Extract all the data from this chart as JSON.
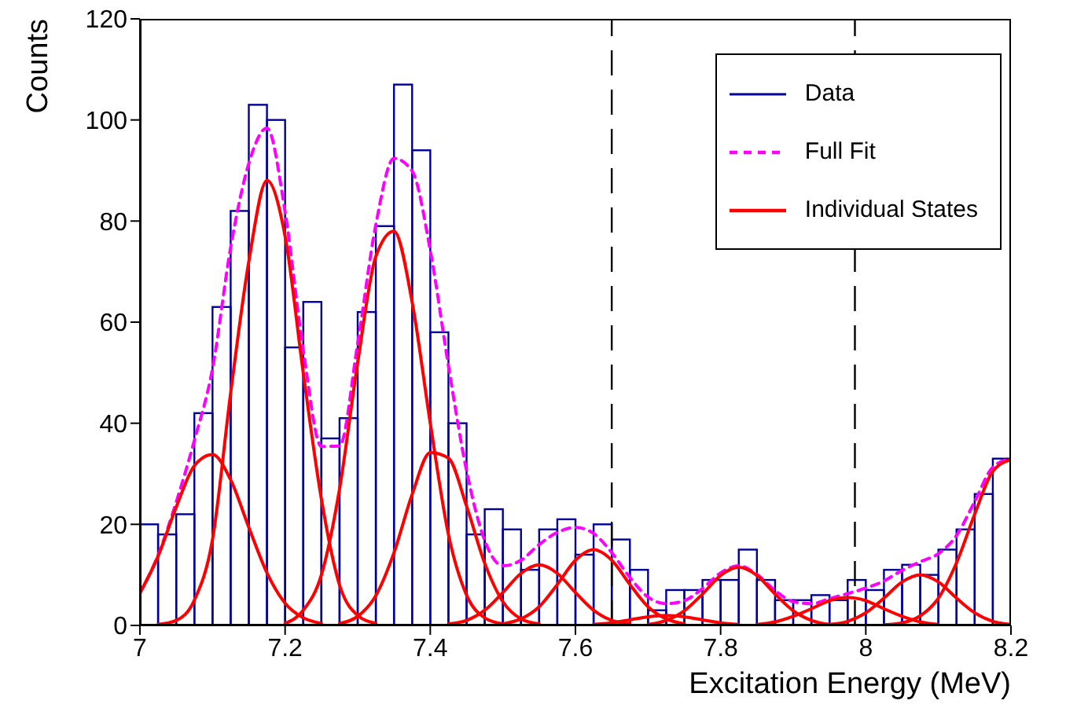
{
  "chart_data": {
    "type": "histogram",
    "xlabel": "Excitation Energy (MeV)",
    "ylabel": "Counts",
    "xlim": [
      7,
      8.2
    ],
    "xticks": [
      7,
      7.2,
      7.4,
      7.6,
      7.8,
      8,
      8.2
    ],
    "ylim": [
      0,
      120
    ],
    "yticks": [
      0,
      20,
      40,
      60,
      80,
      100,
      120
    ],
    "legend": "top right",
    "ref_lines": [
      {
        "axis": "x",
        "value": 7.65,
        "color": "#000000",
        "line_style": "dashed"
      },
      {
        "axis": "x",
        "value": 7.985,
        "color": "#000000",
        "line_style": "dashed"
      }
    ],
    "series": [
      {
        "name": "Data",
        "color": "#000099",
        "bins": [
          7,
          7.025,
          7.05,
          7.075,
          7.1,
          7.125,
          7.15,
          7.175,
          7.2,
          7.225,
          7.25,
          7.275,
          7.3,
          7.325,
          7.35,
          7.375,
          7.4,
          7.425,
          7.45,
          7.475,
          7.5,
          7.525,
          7.55,
          7.575,
          7.6,
          7.625,
          7.65,
          7.675,
          7.7,
          7.725,
          7.75,
          7.775,
          7.8,
          7.825,
          7.85,
          7.875,
          7.9,
          7.925,
          7.95,
          7.975,
          8,
          8.025,
          8.05,
          8.075,
          8.1,
          8.125,
          8.15,
          8.175,
          8.2
        ],
        "values": [
          20,
          18,
          22,
          42,
          63,
          82,
          103,
          100,
          55,
          64,
          37,
          41,
          62,
          79,
          107,
          94,
          58,
          40,
          18,
          23,
          19,
          11,
          19,
          21,
          14,
          20,
          17,
          11,
          3,
          7,
          7,
          9,
          9,
          15,
          9,
          5,
          5,
          6,
          5,
          9,
          7,
          11,
          12,
          10,
          15,
          19,
          26,
          33
        ]
      },
      {
        "type": "line",
        "name": "Full Fit",
        "color": "#ff00ff",
        "line_style": "dashed",
        "x": [
          7,
          7.025,
          7.05,
          7.075,
          7.1,
          7.125,
          7.15,
          7.175,
          7.2,
          7.225,
          7.25,
          7.275,
          7.3,
          7.325,
          7.35,
          7.375,
          7.4,
          7.425,
          7.45,
          7.475,
          7.5,
          7.525,
          7.55,
          7.575,
          7.6,
          7.625,
          7.65,
          7.675,
          7.7,
          7.725,
          7.75,
          7.775,
          7.8,
          7.825,
          7.85,
          7.875,
          7.9,
          7.925,
          7.95,
          7.975,
          8,
          8.025,
          8.05,
          8.075,
          8.1,
          8.125,
          8.15,
          8.175,
          8.2
        ],
        "values": [
          6.4,
          13.9,
          24.4,
          36.6,
          50.8,
          74.8,
          91.4,
          98.4,
          81.8,
          54.5,
          35.4,
          35.5,
          55.8,
          79.3,
          92.4,
          89.9,
          74.2,
          51.4,
          30.6,
          16.8,
          11.8,
          12.9,
          16,
          18.4,
          19.4,
          18.2,
          14.4,
          9.5,
          5.6,
          4.3,
          4.9,
          7.3,
          10.4,
          11.8,
          10.1,
          6.9,
          4.7,
          4.3,
          5.3,
          6.3,
          7.4,
          8.8,
          10.9,
          12.6,
          14.2,
          17.8,
          24.5,
          31.3,
          33
        ]
      },
      {
        "type": "line",
        "name": "Individual States",
        "color": "#ff0000",
        "x": [
          7,
          7.025,
          7.05,
          7.075,
          7.1,
          7.125,
          7.15,
          7.175,
          7.2,
          7.225,
          7.25
        ],
        "values": [
          6.4,
          13.7,
          23.4,
          31.6,
          33.8,
          28.8,
          19.4,
          10.4,
          4.4,
          1.5,
          0.4
        ]
      },
      {
        "type": "line",
        "color": "#ff0000",
        "x": [
          7.025,
          7.05,
          7.075,
          7.1,
          7.125,
          7.15,
          7.175,
          7.2,
          7.225,
          7.25,
          7.275,
          7.3,
          7.325
        ],
        "values": [
          0.2,
          1,
          5,
          17,
          46,
          72,
          88,
          77,
          50,
          25,
          8,
          2,
          0.4
        ]
      },
      {
        "type": "line",
        "color": "#ff0000",
        "x": [
          7.2,
          7.225,
          7.25,
          7.275,
          7.3,
          7.325,
          7.35,
          7.375,
          7.4,
          7.425,
          7.45,
          7.475,
          7.5
        ],
        "values": [
          0.4,
          3,
          10,
          27,
          52,
          73,
          78,
          64,
          40,
          18,
          6,
          1.5,
          0.3
        ]
      },
      {
        "type": "line",
        "color": "#ff0000",
        "x": [
          7.275,
          7.3,
          7.325,
          7.35,
          7.375,
          7.4,
          7.425,
          7.45,
          7.475,
          7.5,
          7.525,
          7.55
        ],
        "values": [
          0.4,
          1.8,
          5.9,
          14.4,
          25.9,
          34.2,
          33.1,
          23.6,
          12.3,
          4.7,
          1.3,
          0.3
        ]
      },
      {
        "type": "line",
        "color": "#ff0000",
        "x": [
          7.425,
          7.45,
          7.475,
          7.5,
          7.525,
          7.55,
          7.575,
          7.6,
          7.625,
          7.65,
          7.675
        ],
        "values": [
          0.3,
          1,
          3,
          6.5,
          10.3,
          12,
          10.3,
          6.5,
          3,
          1,
          0.3
        ]
      },
      {
        "type": "line",
        "color": "#ff0000",
        "x": [
          7.5,
          7.525,
          7.55,
          7.575,
          7.6,
          7.625,
          7.65,
          7.675,
          7.7,
          7.725,
          7.75
        ],
        "values": [
          0.3,
          1.3,
          3.7,
          8.1,
          12.9,
          15,
          12.9,
          8.1,
          3.7,
          1.3,
          0.3
        ]
      },
      {
        "type": "line",
        "color": "#ff0000",
        "x": [
          7.625,
          7.65,
          7.675,
          7.7,
          7.725,
          7.75,
          7.775,
          7.8,
          7.825
        ],
        "values": [
          0.2,
          0.5,
          1.1,
          1.7,
          2,
          1.7,
          1.1,
          0.5,
          0.2
        ]
      },
      {
        "type": "line",
        "color": "#ff0000",
        "x": [
          7.7,
          7.725,
          7.75,
          7.775,
          7.8,
          7.825,
          7.85,
          7.875,
          7.9,
          7.925,
          7.95
        ],
        "values": [
          0.2,
          1,
          2.9,
          6.2,
          9.9,
          11.5,
          9.9,
          6.2,
          2.9,
          1,
          0.2
        ]
      },
      {
        "type": "line",
        "color": "#ff0000",
        "x": [
          7.85,
          7.875,
          7.9,
          7.925,
          7.95,
          7.975,
          8,
          8.025,
          8.05,
          8.075,
          8.1
        ],
        "values": [
          0.2,
          0.7,
          1.8,
          3.3,
          4.9,
          5.5,
          4.9,
          3.3,
          1.8,
          0.7,
          0.2
        ]
      },
      {
        "type": "line",
        "color": "#ff0000",
        "x": [
          7.95,
          7.975,
          8,
          8.025,
          8.05,
          8.075,
          8.1,
          8.125,
          8.15,
          8.175,
          8.2
        ],
        "values": [
          0.2,
          0.8,
          2.5,
          5.4,
          8.6,
          10,
          8.6,
          5.4,
          2.5,
          0.8,
          0.2
        ]
      },
      {
        "type": "line",
        "color": "#ff0000",
        "x": [
          8.025,
          8.05,
          8.075,
          8.1,
          8.125,
          8.15,
          8.175,
          8.2
        ],
        "values": [
          0.1,
          0.5,
          1.9,
          5.4,
          12.4,
          22,
          30.5,
          32.8
        ]
      }
    ]
  }
}
